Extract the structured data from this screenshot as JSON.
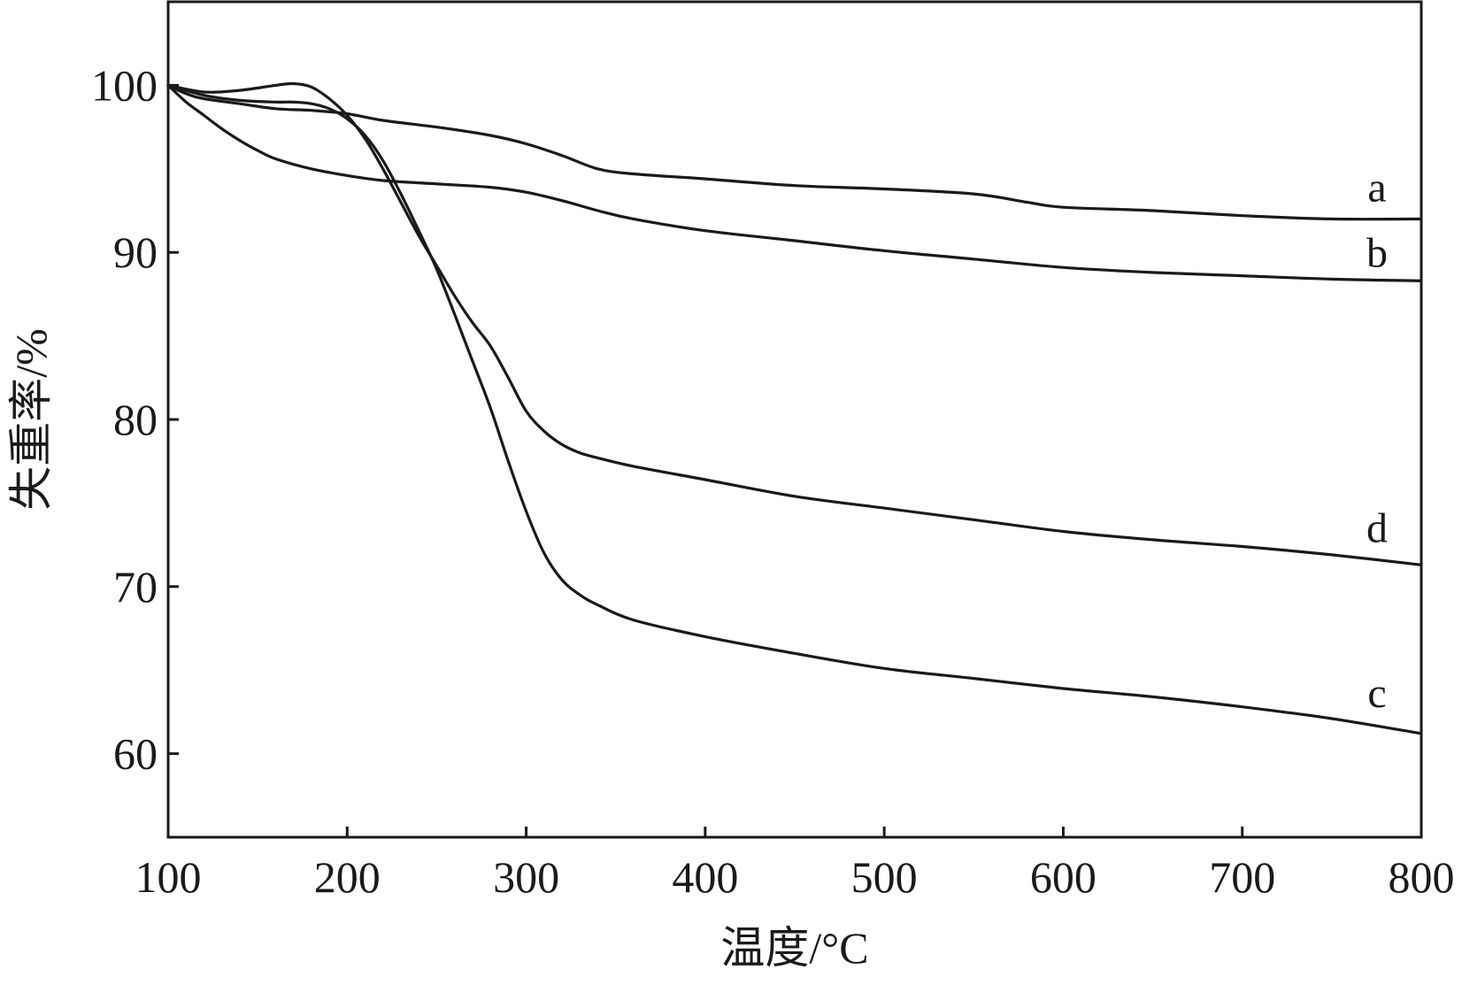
{
  "chart_data": {
    "type": "line",
    "title": "",
    "xlabel": "温度/°C",
    "ylabel": "失重率/%",
    "xlim": [
      100,
      800
    ],
    "ylim": [
      55,
      105
    ],
    "xticks": [
      100,
      200,
      300,
      400,
      500,
      600,
      700,
      800
    ],
    "yticks": [
      60,
      70,
      80,
      90,
      100
    ],
    "grid": false,
    "line_color": "#1a1a1a",
    "series": [
      {
        "name": "a",
        "x": [
          100,
          110,
          120,
          140,
          160,
          180,
          200,
          220,
          250,
          280,
          300,
          320,
          340,
          360,
          400,
          450,
          500,
          550,
          580,
          600,
          650,
          700,
          750,
          800
        ],
        "y": [
          100,
          99.5,
          99.2,
          98.9,
          98.6,
          98.5,
          98.3,
          97.9,
          97.5,
          97.0,
          96.5,
          95.8,
          95.0,
          94.7,
          94.4,
          94.0,
          93.8,
          93.5,
          93.0,
          92.7,
          92.5,
          92.2,
          92.0,
          92.0
        ]
      },
      {
        "name": "b",
        "x": [
          100,
          110,
          120,
          130,
          140,
          150,
          160,
          180,
          200,
          220,
          250,
          280,
          300,
          320,
          340,
          360,
          400,
          450,
          500,
          550,
          600,
          650,
          700,
          750,
          800
        ],
        "y": [
          100,
          99.0,
          98.2,
          97.4,
          96.7,
          96.1,
          95.6,
          95.0,
          94.6,
          94.3,
          94.1,
          93.9,
          93.6,
          93.1,
          92.5,
          92.0,
          91.3,
          90.7,
          90.1,
          89.6,
          89.1,
          88.8,
          88.6,
          88.4,
          88.3
        ]
      },
      {
        "name": "c",
        "x": [
          100,
          120,
          140,
          160,
          170,
          180,
          190,
          200,
          210,
          220,
          230,
          240,
          250,
          260,
          270,
          280,
          290,
          300,
          310,
          320,
          330,
          340,
          360,
          400,
          450,
          500,
          550,
          600,
          650,
          700,
          750,
          800
        ],
        "y": [
          100,
          99.4,
          99.1,
          99.0,
          99.0,
          98.9,
          98.6,
          98.0,
          97.0,
          95.5,
          93.5,
          91.3,
          89.0,
          86.3,
          83.5,
          80.7,
          77.5,
          74.5,
          72.0,
          70.4,
          69.5,
          68.9,
          68.0,
          67.0,
          66.0,
          65.1,
          64.5,
          63.9,
          63.4,
          62.8,
          62.1,
          61.2
        ]
      },
      {
        "name": "d",
        "x": [
          100,
          120,
          140,
          160,
          170,
          180,
          190,
          200,
          210,
          220,
          230,
          240,
          250,
          260,
          270,
          280,
          290,
          300,
          310,
          320,
          330,
          340,
          360,
          400,
          450,
          500,
          550,
          600,
          650,
          700,
          750,
          800
        ],
        "y": [
          100,
          99.6,
          99.7,
          100.0,
          100.1,
          99.9,
          99.2,
          98.2,
          96.8,
          95.0,
          93.0,
          91.0,
          89.2,
          87.4,
          85.8,
          84.4,
          82.5,
          80.5,
          79.3,
          78.5,
          78.0,
          77.7,
          77.2,
          76.4,
          75.4,
          74.7,
          74.0,
          73.3,
          72.8,
          72.4,
          71.9,
          71.3
        ]
      }
    ]
  }
}
